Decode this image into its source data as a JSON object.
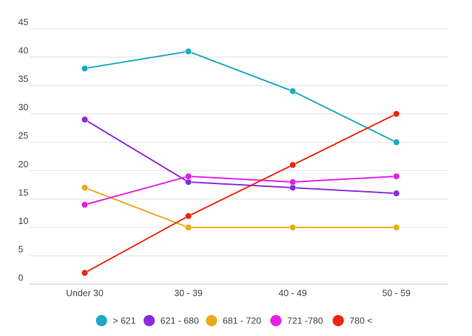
{
  "chart_data": {
    "type": "line",
    "categories": [
      "Under 30",
      "30 - 39",
      "40 - 49",
      "50 - 59"
    ],
    "ylim": [
      0,
      45
    ],
    "yticks": [
      0,
      5,
      10,
      15,
      20,
      25,
      30,
      35,
      40,
      45
    ],
    "grid": true,
    "legend_position": "bottom",
    "series": [
      {
        "name": "> 621",
        "color": "#1ea8c4",
        "values": [
          38,
          41,
          34,
          25
        ]
      },
      {
        "name": "621 - 680",
        "color": "#8a2be2",
        "values": [
          29,
          18,
          17,
          16
        ]
      },
      {
        "name": "681 - 720",
        "color": "#e9ab17",
        "values": [
          17,
          10,
          10,
          10
        ]
      },
      {
        "name": "721 -780",
        "color": "#e61ee6",
        "values": [
          14,
          19,
          18,
          19
        ]
      },
      {
        "name": "780 <",
        "color": "#f0260e",
        "values": [
          2,
          12,
          21,
          30
        ]
      }
    ]
  }
}
